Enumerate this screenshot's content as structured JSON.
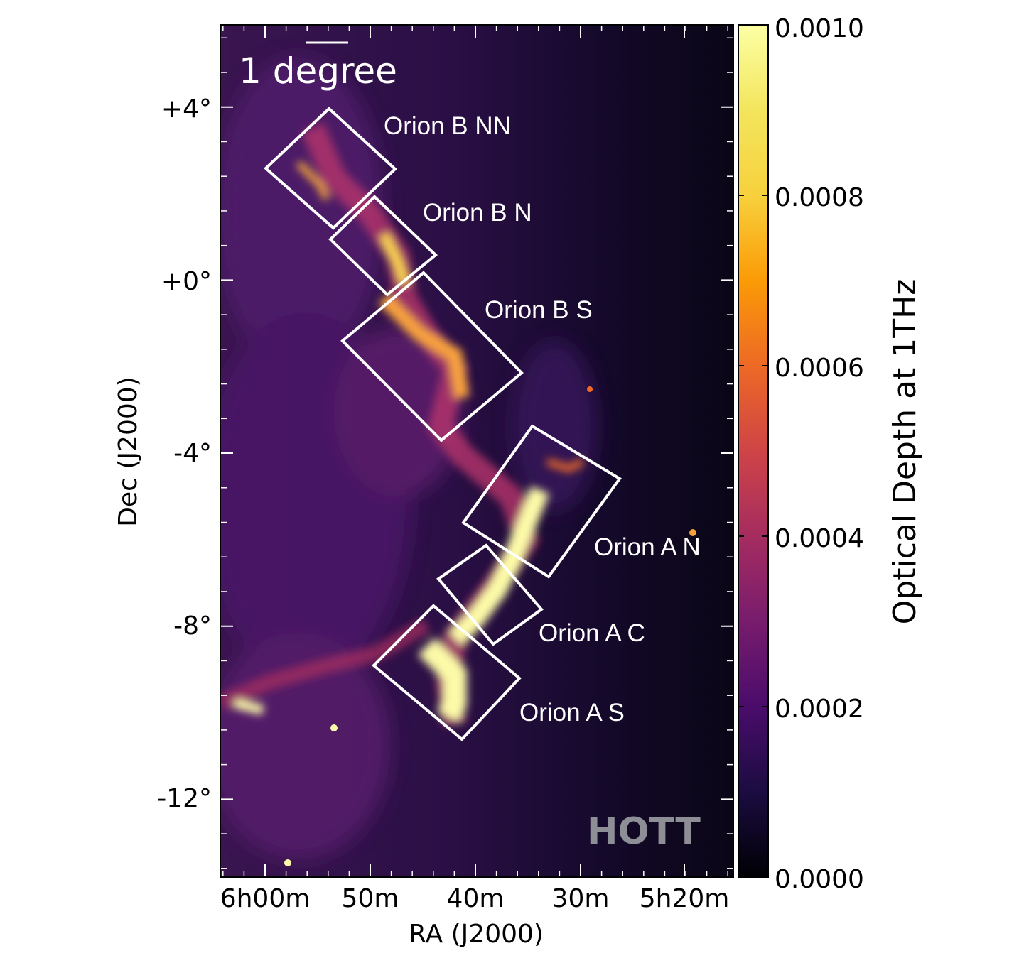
{
  "chart_data": {
    "type": "heatmap",
    "title": "",
    "xlabel": "RA (J2000)",
    "ylabel": "Dec (J2000)",
    "x_ticks": [
      "6h00m",
      "50m",
      "40m",
      "30m",
      "5h20m"
    ],
    "y_ticks": [
      "+4°",
      "+0°",
      "-4°",
      "-8°",
      "-12°"
    ],
    "y_tick_values": [
      4,
      0,
      -4,
      -8,
      -12
    ],
    "ylim": [
      -13.8,
      5.9
    ],
    "colorbar": {
      "label": "Optical Depth at 1THz",
      "ticks": [
        "0.0000",
        "0.0002",
        "0.0004",
        "0.0006",
        "0.0008",
        "0.0010"
      ],
      "range": [
        0.0,
        0.001
      ],
      "colormap": "inferno"
    },
    "regions": [
      "Orion B NN",
      "Orion B N",
      "Orion B S",
      "Orion A N",
      "Orion A C",
      "Orion A S"
    ],
    "scale_bar": "1 degree",
    "watermark": "HOTT"
  },
  "colors": {
    "background": "#0d0717",
    "frame": "#000000",
    "box": "#ffffff"
  }
}
